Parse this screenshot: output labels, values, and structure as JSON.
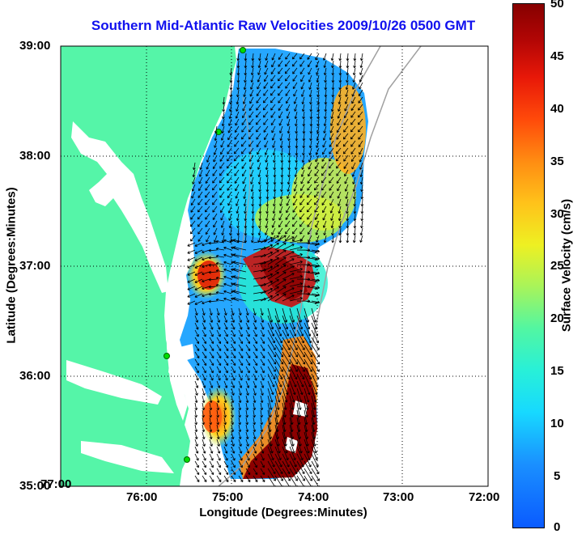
{
  "title": "Southern Mid-Atlantic Raw Velocities 2009/10/26 0500 GMT",
  "axes": {
    "xlabel": "Longitude (Degrees:Minutes)",
    "ylabel": "Latitude (Degrees:Minutes)",
    "x_ticks": [
      "77:00",
      "76:00",
      "75:00",
      "74:00",
      "73:00",
      "72:00"
    ],
    "y_ticks": [
      "39:00",
      "38:00",
      "37:00",
      "36:00",
      "35:00"
    ]
  },
  "colorbar": {
    "label": "Surface Velocity (cm/s)",
    "ticks": [
      "50",
      "45",
      "40",
      "35",
      "30",
      "25",
      "20",
      "15",
      "10",
      "5",
      "0"
    ]
  },
  "colors": {
    "land": "#55f5a8",
    "title": "#1010ee",
    "arrows": "#000000",
    "isobath": "#a0a0a0"
  }
}
